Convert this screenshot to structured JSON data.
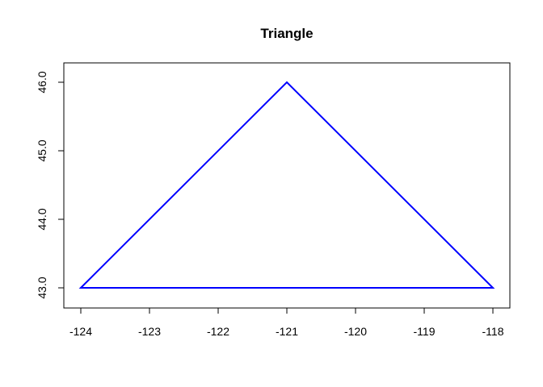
{
  "chart_data": {
    "type": "line",
    "title": "Triangle",
    "xlabel": "",
    "ylabel": "",
    "xlim": [
      -124,
      -118
    ],
    "ylim": [
      43,
      46
    ],
    "grid": false,
    "legend": "none",
    "x_ticks": [
      -124,
      -123,
      -122,
      -121,
      -120,
      -119,
      -118
    ],
    "x_tick_labels": [
      "-124",
      "-123",
      "-122",
      "-121",
      "-120",
      "-119",
      "-118"
    ],
    "y_ticks": [
      43,
      44,
      45,
      46
    ],
    "y_tick_labels": [
      "43.0",
      "44.0",
      "45.0",
      "46.0"
    ],
    "series": [
      {
        "color": "#0000ff",
        "closed": true,
        "points": [
          {
            "x": -124,
            "y": 43
          },
          {
            "x": -121,
            "y": 46
          },
          {
            "x": -118,
            "y": 43
          }
        ]
      }
    ]
  }
}
